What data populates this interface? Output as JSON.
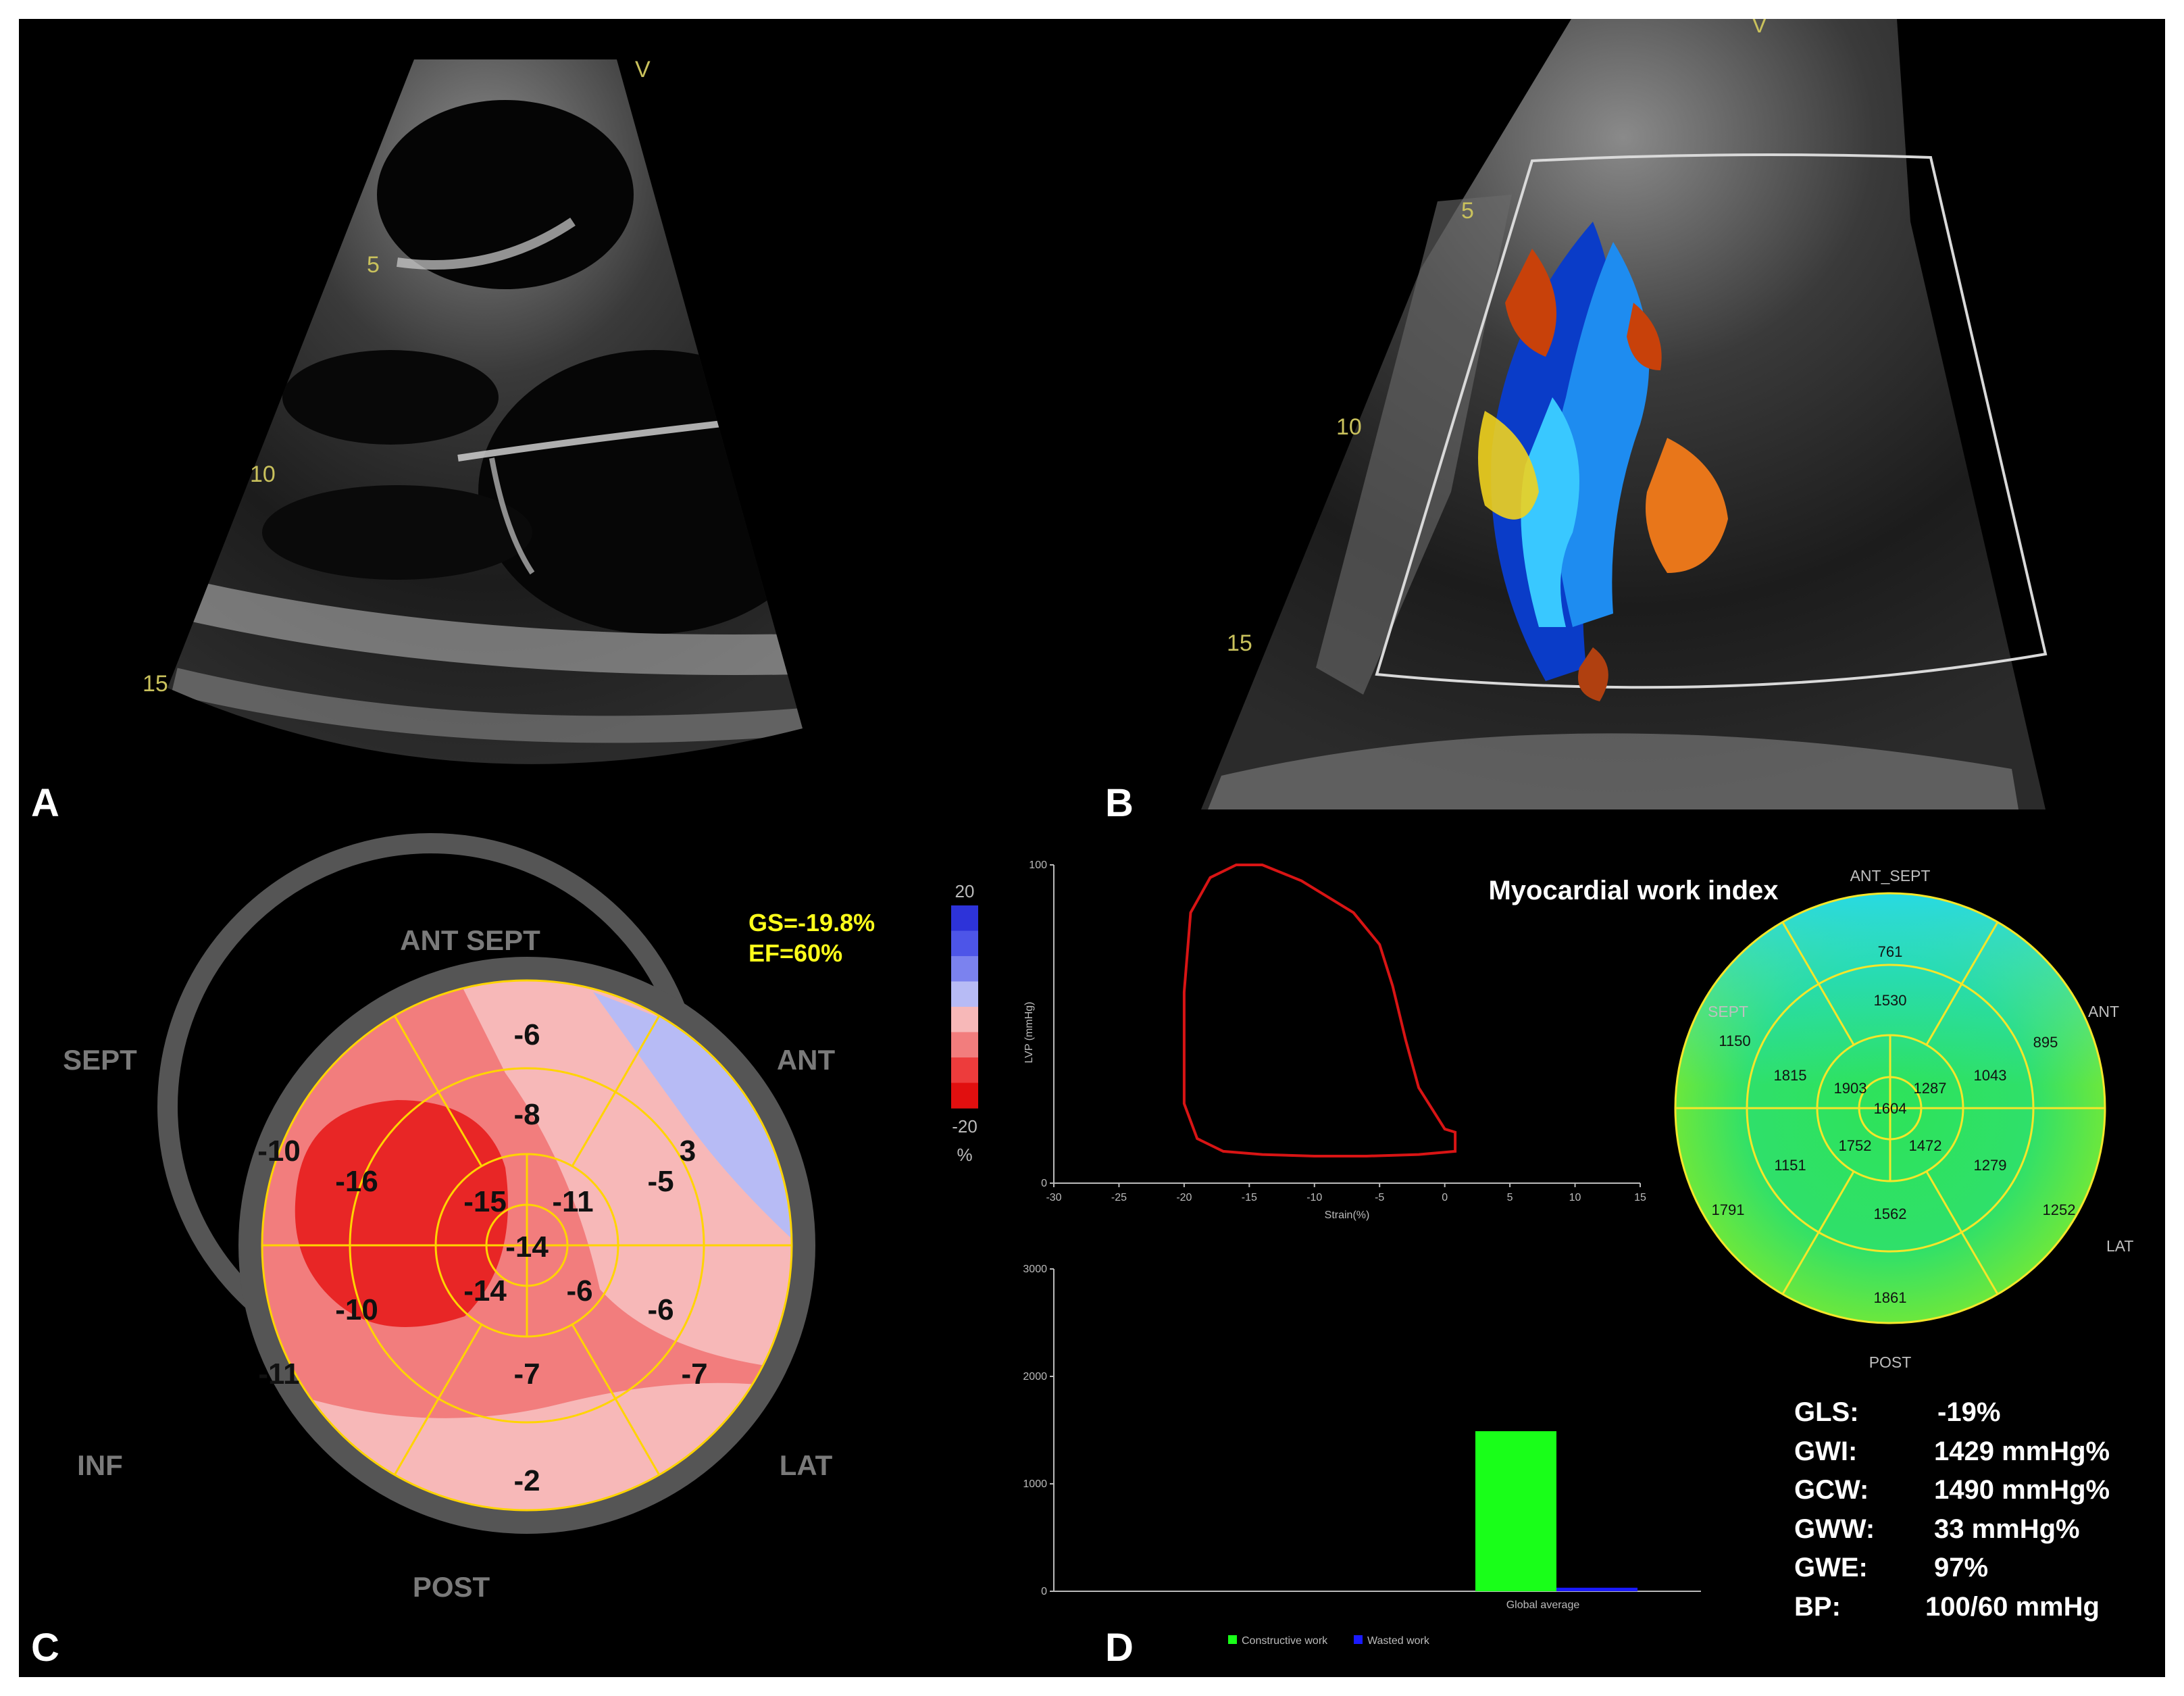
{
  "panels": {
    "A": {
      "letter": "A",
      "marker": "V",
      "depth_marks": [
        "5",
        "10",
        "15"
      ]
    },
    "B": {
      "letter": "B",
      "marker": "V",
      "depth_marks": [
        "5",
        "10",
        "15"
      ]
    },
    "C": {
      "letter": "C",
      "walls": {
        "ant_sept": "ANT SEPT",
        "sept": "SEPT",
        "ant": "ANT",
        "inf": "INF",
        "lat": "LAT",
        "post": "POST"
      },
      "gs": "GS=-19.8%",
      "ef": "EF=60%",
      "scale_top": "20",
      "scale_bottom": "-20",
      "scale_unit": "%",
      "scale_colors": [
        "#2d33d9",
        "#4d55e8",
        "#7b82ef",
        "#b7bbf5",
        "#f7b8b8",
        "#f27d7d",
        "#ed3c3c",
        "#e10f0f"
      ],
      "segments": {
        "basal_1": "-6",
        "basal_2": "3",
        "basal_3": "-7",
        "basal_4": "-2",
        "basal_5": "-11",
        "basal_6": "-10",
        "mid_1": "-8",
        "mid_2": "-5",
        "mid_3": "-6",
        "mid_4": "-7",
        "mid_5": "-10",
        "mid_6": "-16",
        "apical_1": "-15",
        "apical_2": "-11",
        "apical_3": "-6",
        "apical_4": "-14",
        "apex": "-14"
      }
    },
    "D": {
      "letter": "D",
      "loop_chart": {
        "xlabel": "Strain(%)",
        "ylabel": "LVP (mmHg)",
        "x_ticks": [
          "-30",
          "-25",
          "-20",
          "-15",
          "-10",
          "-5",
          "0",
          "5",
          "10",
          "15"
        ],
        "y_ticks": [
          "0",
          "100"
        ]
      },
      "bar_chart": {
        "y_ticks": [
          "0",
          "1000",
          "2000",
          "3000"
        ],
        "category": "Global average",
        "legend_constructive": "Constructive work",
        "legend_wasted": "Wasted work",
        "color_constructive": "#19ff19",
        "color_wasted": "#1a1aff"
      },
      "mwi": {
        "title": "Myocardial work index",
        "walls": {
          "ant_sept": "ANT_SEPT",
          "sept": "SEPT",
          "ant": "ANT",
          "lat": "LAT",
          "post": "POST"
        },
        "segments": {
          "basal_top": "761",
          "basal_tr": "895",
          "basal_br": "1252",
          "basal_bottom": "1861",
          "basal_bl": "1791",
          "basal_tl": "1150",
          "mid_top": "1530",
          "mid_tr": "1043",
          "mid_br": "1279",
          "mid_bottom": "1562",
          "mid_bl": "1151",
          "mid_tl": "1815",
          "apical_tl": "1903",
          "apical_tr": "1287",
          "apical_br": "1472",
          "apical_bl": "1752",
          "apex": "1604"
        }
      },
      "metrics": [
        {
          "label": "GLS:",
          "value": "-19%"
        },
        {
          "label": "GWI:",
          "value": "1429 mmHg%"
        },
        {
          "label": "GCW:",
          "value": "1490 mmHg%"
        },
        {
          "label": "GWW:",
          "value": "33 mmHg%"
        },
        {
          "label": "GWE:",
          "value": "97%"
        },
        {
          "label": "BP:",
          "value": "100/60 mmHg"
        }
      ]
    }
  },
  "chart_data": [
    {
      "type": "line",
      "xlabel": "Strain(%)",
      "ylabel": "LVP (mmHg)",
      "xlim": [
        -30,
        15
      ],
      "ylim": [
        0,
        100
      ],
      "x": [
        -20,
        -19.5,
        -18,
        -16,
        -14,
        -11,
        -7,
        -5,
        -4,
        -3,
        -2,
        0,
        0.8,
        0.8,
        -2,
        -6,
        -10,
        -14,
        -17,
        -19,
        -20,
        -20
      ],
      "y": [
        60,
        85,
        96,
        100,
        100,
        95,
        85,
        75,
        62,
        45,
        30,
        17,
        16,
        10,
        9,
        8.5,
        8.5,
        9,
        10,
        14,
        25,
        60
      ]
    },
    {
      "type": "bar",
      "categories": [
        "Global average"
      ],
      "series": [
        {
          "name": "Constructive work",
          "values": [
            1490
          ]
        },
        {
          "name": "Wasted work",
          "values": [
            33
          ]
        }
      ],
      "ylim": [
        0,
        3000
      ]
    }
  ]
}
